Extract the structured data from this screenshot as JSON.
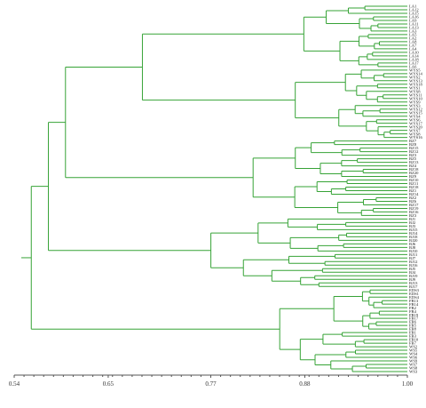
{
  "axis": {
    "min": 0.54,
    "max": 1.0,
    "ticks": [
      {
        "value": 0.54,
        "label": "0.54"
      },
      {
        "value": 0.65,
        "label": "0.65"
      },
      {
        "value": 0.77,
        "label": "0.77"
      },
      {
        "value": 0.88,
        "label": "0.88"
      },
      {
        "value": 1.0,
        "label": "1.00"
      }
    ]
  },
  "colors": {
    "branch": "#36a336",
    "axis": "#555555",
    "text": "#222222"
  },
  "groups": [
    {
      "id": "LA",
      "labels": [
        "LA1",
        "LA12",
        "LA15",
        "LA16",
        "LA9",
        "LA11",
        "LA13",
        "LA3",
        "LA5",
        "LA2",
        "LA8",
        "LA7",
        "LA4",
        "LA10",
        "LA14",
        "LA18",
        "LA17",
        "LA6"
      ]
    },
    {
      "id": "WYS",
      "labels": [
        "WYS5",
        "WYS14",
        "WYS2",
        "WYS13",
        "WYS18",
        "WYS1",
        "WYS8",
        "WYS11",
        "WYS10",
        "WYS9",
        "WYS3",
        "WYS12",
        "WYS15",
        "WYS4",
        "WYS6",
        "WYS17",
        "WYS20",
        "WYS7",
        "WYS8",
        "WYS16"
      ]
    },
    {
      "id": "BZ",
      "labels": [
        "BZ7",
        "BZ8",
        "BZ15",
        "BZ12",
        "BZ3",
        "BZ5",
        "BZ13",
        "BZ4",
        "BZ18",
        "BZ20",
        "BZ9",
        "BZ10",
        "BZ11",
        "BZ18",
        "BZ1",
        "BZ14",
        "BZ2",
        "BZ6",
        "BZ17",
        "BZ19",
        "BZ16",
        "BZ3"
      ]
    },
    {
      "id": "BJ",
      "labels": [
        "BJ1",
        "BJ2",
        "BJ3",
        "BJ15",
        "BJ14",
        "BJ18",
        "BJ20",
        "BJ6",
        "BJ8",
        "BJ10",
        "BJ11",
        "BJ7",
        "BJ12",
        "BJ16",
        "BJ5",
        "BJ4",
        "BJ19",
        "BJ9",
        "BJ13",
        "BJ17"
      ]
    },
    {
      "id": "EDS",
      "labels": [
        "EDS3",
        "EDS1",
        "EDS4",
        "FB13",
        "FB14",
        "FB2",
        "FB4",
        "FB19",
        "FB17",
        "FB6",
        "FB5",
        "FB8",
        "FB1",
        "FB3",
        "FB10",
        "FB7",
        "WS2",
        "WS5",
        "WS4",
        "WS6",
        "WS9",
        "WS7",
        "WS8",
        "WS3"
      ]
    }
  ]
}
